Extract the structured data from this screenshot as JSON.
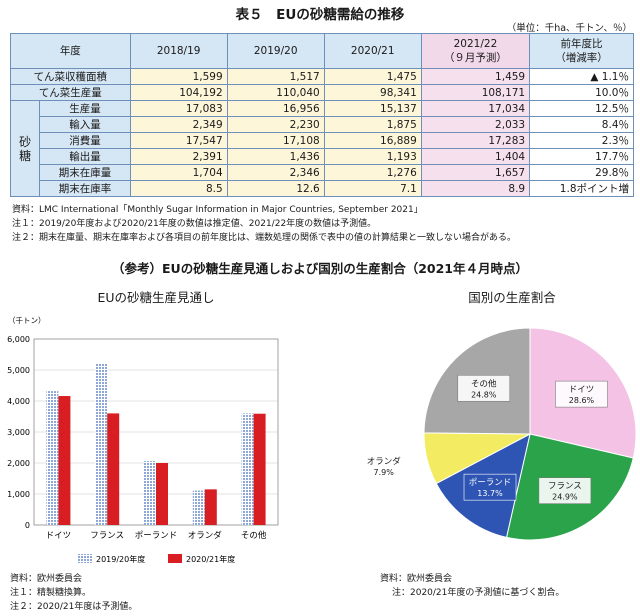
{
  "title": "表５　EUの砂糖需給の推移",
  "unit": "（単位：千ha、千トン、％）",
  "table": {
    "headers": [
      "年度",
      "2018/19",
      "2019/20",
      "2020/21",
      "2021/22",
      "（９月予測）",
      "前年度比",
      "（増減率）"
    ],
    "group_label": [
      "砂",
      "糖"
    ],
    "rows": [
      {
        "label": "てん菜収穫面積",
        "v1": "1,599",
        "v2": "1,517",
        "v3": "1,475",
        "v4": "1,459",
        "v5": "▲ 1.1％"
      },
      {
        "label": "てん菜生産量",
        "v1": "104,192",
        "v2": "110,040",
        "v3": "98,341",
        "v4": "108,171",
        "v5": "10.0％"
      },
      {
        "label": "生産量",
        "v1": "17,083",
        "v2": "16,956",
        "v3": "15,137",
        "v4": "17,034",
        "v5": "12.5％"
      },
      {
        "label": "輸入量",
        "v1": "2,349",
        "v2": "2,230",
        "v3": "1,875",
        "v4": "2,033",
        "v5": "8.4％"
      },
      {
        "label": "消費量",
        "v1": "17,547",
        "v2": "17,108",
        "v3": "16,889",
        "v4": "17,283",
        "v5": "2.3％"
      },
      {
        "label": "輸出量",
        "v1": "2,391",
        "v2": "1,436",
        "v3": "1,193",
        "v4": "1,404",
        "v5": "17.7％"
      },
      {
        "label": "期末在庫量",
        "v1": "1,704",
        "v2": "2,346",
        "v3": "1,276",
        "v4": "1,657",
        "v5": "29.8％"
      },
      {
        "label": "期末在庫率",
        "v1": "8.5",
        "v2": "12.6",
        "v3": "7.1",
        "v4": "8.9",
        "v5": "1.8ポイント増"
      }
    ]
  },
  "notes": [
    "資料：LMC International「Monthly Sugar Information in Major Countries, September 2021」",
    "注１：2019/20年度および2020/21年度の数値は推定値、2021/22年度の数値は予測値。",
    "注２：期末在庫量、期末在庫率および各項目の前年度比は、端数処理の関係で表中の値の計算結果と一致しない場合がある。"
  ],
  "ref_title": "（参考）EUの砂糖生産見通しおよび国別の生産割合（2021年４月時点）",
  "bar_subtitle": "EUの砂糖生産見通し",
  "pie_subtitle": "国別の生産割合",
  "bar_notes": [
    "資料：欧州委員会",
    "注１：精製糖換算。",
    "注２：2020/21年度は予測値。"
  ],
  "pie_notes": [
    "資料：欧州委員会",
    "注：2020/21年度の予測値に基づく割合。"
  ],
  "colors": {
    "s1": "#8fa6d8",
    "s2": "#d81e22"
  },
  "chart_data": [
    {
      "type": "bar",
      "ylabel": "（千トン）",
      "ylim": [
        0,
        6000
      ],
      "yticks": [
        "0",
        "1,000",
        "2,000",
        "3,000",
        "4,000",
        "5,000",
        "6,000"
      ],
      "categories": [
        "ドイツ",
        "フランス",
        "ポーランド",
        "オランダ",
        "その他"
      ],
      "series": [
        {
          "name": "2019/20年度",
          "values": [
            4320,
            5200,
            2060,
            1110,
            3600
          ]
        },
        {
          "name": "2020/21年度",
          "values": [
            4160,
            3600,
            2000,
            1150,
            3590
          ]
        }
      ],
      "legend": "bottom"
    },
    {
      "type": "pie",
      "slices": [
        {
          "label": "ドイツ",
          "value": "28.6%",
          "pct": 28.6,
          "color": "#f4c2e4"
        },
        {
          "label": "フランス",
          "value": "24.9%",
          "pct": 24.9,
          "color": "#2aa34a"
        },
        {
          "label": "ポーランド",
          "value": "13.7%",
          "pct": 13.7,
          "color": "#2f55b4"
        },
        {
          "label": "オランダ",
          "value": "7.9%",
          "pct": 7.9,
          "color": "#f3ec62"
        },
        {
          "label": "その他",
          "value": "24.8%",
          "pct": 24.8,
          "color": "#a7a7a7"
        }
      ]
    }
  ]
}
